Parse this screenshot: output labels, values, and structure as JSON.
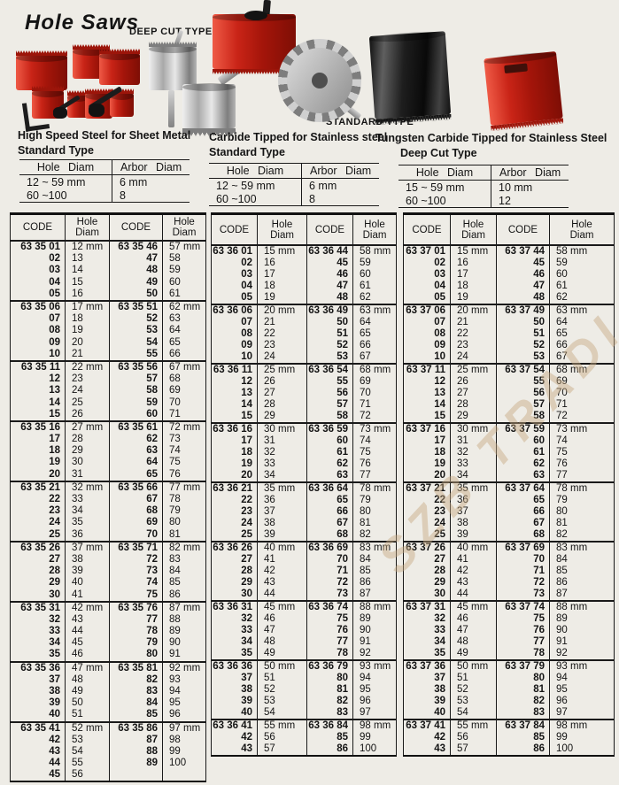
{
  "title": "Hole Saws",
  "labels": {
    "deep_cut_type": "DEEP CUT TYPE",
    "standard_type": "STANDARD TYPE"
  },
  "watermark": "SZB TRADI",
  "photos": [
    "hole-saw-set",
    "deep-cut-hole-saw",
    "carbide-tipped-cutter",
    "large-red-hole-saw",
    "circular-saw-blade",
    "black-hole-saw",
    "compact-red-hole-saw"
  ],
  "sections": [
    {
      "line1": "High Speed Steel for Sheet Metal",
      "line2": "Standard Type",
      "table": {
        "headers": [
          "Hole Diam",
          "Arbor Diam"
        ],
        "rows": [
          [
            "12 ~ 59 mm",
            "6 mm"
          ],
          [
            "60 ~100",
            "8"
          ]
        ]
      }
    },
    {
      "line1": "Carbide Tipped for Stainless steel",
      "line2": "Standard Type",
      "table": {
        "headers": [
          "Hole Diam",
          "Arbor Diam"
        ],
        "rows": [
          [
            "12 ~ 59 mm",
            "6 mm"
          ],
          [
            "60 ~100",
            "8"
          ]
        ]
      }
    },
    {
      "line1": "Tungsten Carbide Tipped for Stainless Steel",
      "line2": "Deep Cut Type",
      "table": {
        "headers": [
          "Hole Diam",
          "Arbor Diam"
        ],
        "rows": [
          [
            "15 ~ 59 mm",
            "10 mm"
          ],
          [
            "60 ~100",
            "12"
          ]
        ]
      }
    }
  ],
  "main_table": {
    "code_label": "CODE",
    "hole_label": [
      "Hole",
      "Diam"
    ],
    "blocks": [
      {
        "series": "63 35",
        "groups": [
          {
            "c1": [
              "63 35 01",
              "02",
              "03",
              "04",
              "05"
            ],
            "h1": [
              "12 mm",
              "13",
              "14",
              "15",
              "16"
            ],
            "c2": [
              "63 35 46",
              "47",
              "48",
              "49",
              "50"
            ],
            "h2": [
              "57 mm",
              "58",
              "59",
              "60",
              "61"
            ]
          },
          {
            "c1": [
              "63 35 06",
              "07",
              "08",
              "09",
              "10"
            ],
            "h1": [
              "17 mm",
              "18",
              "19",
              "20",
              "21"
            ],
            "c2": [
              "63 35 51",
              "52",
              "53",
              "54",
              "55"
            ],
            "h2": [
              "62 mm",
              "63",
              "64",
              "65",
              "66"
            ]
          },
          {
            "c1": [
              "63 35 11",
              "12",
              "13",
              "14",
              "15"
            ],
            "h1": [
              "22 mm",
              "23",
              "24",
              "25",
              "26"
            ],
            "c2": [
              "63 35 56",
              "57",
              "58",
              "59",
              "60"
            ],
            "h2": [
              "67 mm",
              "68",
              "69",
              "70",
              "71"
            ]
          },
          {
            "c1": [
              "63 35 16",
              "17",
              "18",
              "19",
              "20"
            ],
            "h1": [
              "27 mm",
              "28",
              "29",
              "30",
              "31"
            ],
            "c2": [
              "63 35 61",
              "62",
              "63",
              "64",
              "65"
            ],
            "h2": [
              "72 mm",
              "73",
              "74",
              "75",
              "76"
            ]
          },
          {
            "c1": [
              "63 35 21",
              "22",
              "23",
              "24",
              "25"
            ],
            "h1": [
              "32 mm",
              "33",
              "34",
              "35",
              "36"
            ],
            "c2": [
              "63 35 66",
              "67",
              "68",
              "69",
              "70"
            ],
            "h2": [
              "77 mm",
              "78",
              "79",
              "80",
              "81"
            ]
          },
          {
            "c1": [
              "63 35 26",
              "27",
              "28",
              "29",
              "30"
            ],
            "h1": [
              "37 mm",
              "38",
              "39",
              "40",
              "41"
            ],
            "c2": [
              "63 35 71",
              "72",
              "73",
              "74",
              "75"
            ],
            "h2": [
              "82 mm",
              "83",
              "84",
              "85",
              "86"
            ]
          },
          {
            "c1": [
              "63 35 31",
              "32",
              "33",
              "34",
              "35"
            ],
            "h1": [
              "42 mm",
              "43",
              "44",
              "45",
              "46"
            ],
            "c2": [
              "63 35 76",
              "77",
              "78",
              "79",
              "80"
            ],
            "h2": [
              "87 mm",
              "88",
              "89",
              "90",
              "91"
            ]
          },
          {
            "c1": [
              "63 35 36",
              "37",
              "38",
              "39",
              "40"
            ],
            "h1": [
              "47 mm",
              "48",
              "49",
              "50",
              "51"
            ],
            "c2": [
              "63 35 81",
              "82",
              "83",
              "84",
              "85"
            ],
            "h2": [
              "92 mm",
              "93",
              "94",
              "95",
              "96"
            ]
          },
          {
            "c1": [
              "63 35 41",
              "42",
              "43",
              "44",
              "45"
            ],
            "h1": [
              "52 mm",
              "53",
              "54",
              "55",
              "56"
            ],
            "c2": [
              "63 35 86",
              "87",
              "88",
              "89"
            ],
            "h2": [
              "97 mm",
              "98",
              "99",
              "100"
            ]
          }
        ]
      },
      {
        "series": "63 36",
        "groups": [
          {
            "c1": [
              "63 36 01",
              "02",
              "03",
              "04",
              "05"
            ],
            "h1": [
              "15 mm",
              "16",
              "17",
              "18",
              "19"
            ],
            "c2": [
              "63 36 44",
              "45",
              "46",
              "47",
              "48"
            ],
            "h2": [
              "58 mm",
              "59",
              "60",
              "61",
              "62"
            ]
          },
          {
            "c1": [
              "63 36 06",
              "07",
              "08",
              "09",
              "10"
            ],
            "h1": [
              "20 mm",
              "21",
              "22",
              "23",
              "24"
            ],
            "c2": [
              "63 36 49",
              "50",
              "51",
              "52",
              "53"
            ],
            "h2": [
              "63 mm",
              "64",
              "65",
              "66",
              "67"
            ]
          },
          {
            "c1": [
              "63 36 11",
              "12",
              "13",
              "14",
              "15"
            ],
            "h1": [
              "25 mm",
              "26",
              "27",
              "28",
              "29"
            ],
            "c2": [
              "63 36 54",
              "55",
              "56",
              "57",
              "58"
            ],
            "h2": [
              "68 mm",
              "69",
              "70",
              "71",
              "72"
            ]
          },
          {
            "c1": [
              "63 36 16",
              "17",
              "18",
              "19",
              "20"
            ],
            "h1": [
              "30 mm",
              "31",
              "32",
              "33",
              "34"
            ],
            "c2": [
              "63 36 59",
              "60",
              "61",
              "62",
              "63"
            ],
            "h2": [
              "73 mm",
              "74",
              "75",
              "76",
              "77"
            ]
          },
          {
            "c1": [
              "63 36 21",
              "22",
              "23",
              "24",
              "25"
            ],
            "h1": [
              "35 mm",
              "36",
              "37",
              "38",
              "39"
            ],
            "c2": [
              "63 36 64",
              "65",
              "66",
              "67",
              "68"
            ],
            "h2": [
              "78 mm",
              "79",
              "80",
              "81",
              "82"
            ]
          },
          {
            "c1": [
              "63 36 26",
              "27",
              "28",
              "29",
              "30"
            ],
            "h1": [
              "40 mm",
              "41",
              "42",
              "43",
              "44"
            ],
            "c2": [
              "63 36 69",
              "70",
              "71",
              "72",
              "73"
            ],
            "h2": [
              "83 mm",
              "84",
              "85",
              "86",
              "87"
            ]
          },
          {
            "c1": [
              "63 36 31",
              "32",
              "33",
              "34",
              "35"
            ],
            "h1": [
              "45 mm",
              "46",
              "47",
              "48",
              "49"
            ],
            "c2": [
              "63 36 74",
              "75",
              "76",
              "77",
              "78"
            ],
            "h2": [
              "88 mm",
              "89",
              "90",
              "91",
              "92"
            ]
          },
          {
            "c1": [
              "63 36 36",
              "37",
              "38",
              "39",
              "40"
            ],
            "h1": [
              "50 mm",
              "51",
              "52",
              "53",
              "54"
            ],
            "c2": [
              "63 36 79",
              "80",
              "81",
              "82",
              "83"
            ],
            "h2": [
              "93 mm",
              "94",
              "95",
              "96",
              "97"
            ]
          },
          {
            "c1": [
              "63 36 41",
              "42",
              "43"
            ],
            "h1": [
              "55 mm",
              "56",
              "57"
            ],
            "c2": [
              "63 36 84",
              "85",
              "86"
            ],
            "h2": [
              "98 mm",
              "99",
              "100"
            ]
          }
        ]
      },
      {
        "series": "63 37",
        "groups": [
          {
            "c1": [
              "63 37 01",
              "02",
              "03",
              "04",
              "05"
            ],
            "h1": [
              "15 mm",
              "16",
              "17",
              "18",
              "19"
            ],
            "c2": [
              "63 37 44",
              "45",
              "46",
              "47",
              "48"
            ],
            "h2": [
              "58 mm",
              "59",
              "60",
              "61",
              "62"
            ]
          },
          {
            "c1": [
              "63 37 06",
              "07",
              "08",
              "09",
              "10"
            ],
            "h1": [
              "20 mm",
              "21",
              "22",
              "23",
              "24"
            ],
            "c2": [
              "63 37 49",
              "50",
              "51",
              "52",
              "53"
            ],
            "h2": [
              "63 mm",
              "64",
              "65",
              "66",
              "67"
            ]
          },
          {
            "c1": [
              "63 37 11",
              "12",
              "13",
              "14",
              "15"
            ],
            "h1": [
              "25 mm",
              "26",
              "27",
              "28",
              "29"
            ],
            "c2": [
              "63 37 54",
              "55",
              "56",
              "57",
              "58"
            ],
            "h2": [
              "68 mm",
              "69",
              "70",
              "71",
              "72"
            ]
          },
          {
            "c1": [
              "63 37 16",
              "17",
              "18",
              "19",
              "20"
            ],
            "h1": [
              "30 mm",
              "31",
              "32",
              "33",
              "34"
            ],
            "c2": [
              "63 37 59",
              "60",
              "61",
              "62",
              "63"
            ],
            "h2": [
              "73 mm",
              "74",
              "75",
              "76",
              "77"
            ]
          },
          {
            "c1": [
              "63 37 21",
              "22",
              "23",
              "24",
              "25"
            ],
            "h1": [
              "35 mm",
              "36",
              "37",
              "38",
              "39"
            ],
            "c2": [
              "63 37 64",
              "65",
              "66",
              "67",
              "68"
            ],
            "h2": [
              "78 mm",
              "79",
              "80",
              "81",
              "82"
            ]
          },
          {
            "c1": [
              "63 37 26",
              "27",
              "28",
              "29",
              "30"
            ],
            "h1": [
              "40 mm",
              "41",
              "42",
              "43",
              "44"
            ],
            "c2": [
              "63 37 69",
              "70",
              "71",
              "72",
              "73"
            ],
            "h2": [
              "83 mm",
              "84",
              "85",
              "86",
              "87"
            ]
          },
          {
            "c1": [
              "63 37 31",
              "32",
              "33",
              "34",
              "35"
            ],
            "h1": [
              "45 mm",
              "46",
              "47",
              "48",
              "49"
            ],
            "c2": [
              "63 37 74",
              "75",
              "76",
              "77",
              "78"
            ],
            "h2": [
              "88 mm",
              "89",
              "90",
              "91",
              "92"
            ]
          },
          {
            "c1": [
              "63 37 36",
              "37",
              "38",
              "39",
              "40"
            ],
            "h1": [
              "50 mm",
              "51",
              "52",
              "53",
              "54"
            ],
            "c2": [
              "63 37 79",
              "80",
              "81",
              "82",
              "83"
            ],
            "h2": [
              "93 mm",
              "94",
              "95",
              "96",
              "97"
            ]
          },
          {
            "c1": [
              "63 37 41",
              "42",
              "43"
            ],
            "h1": [
              "55 mm",
              "56",
              "57"
            ],
            "c2": [
              "63 37 84",
              "85",
              "86"
            ],
            "h2": [
              "98 mm",
              "99",
              "100"
            ]
          }
        ]
      }
    ]
  }
}
